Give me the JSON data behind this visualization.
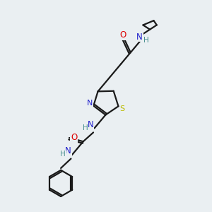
{
  "bg_color": "#eaeff2",
  "bond_color": "#1a1a1a",
  "atom_colors": {
    "O": "#dd0000",
    "N": "#2222cc",
    "S": "#bbbb00",
    "C": "#1a1a1a",
    "H": "#4a9090"
  },
  "lw": 1.6,
  "fontsize": 8.5
}
